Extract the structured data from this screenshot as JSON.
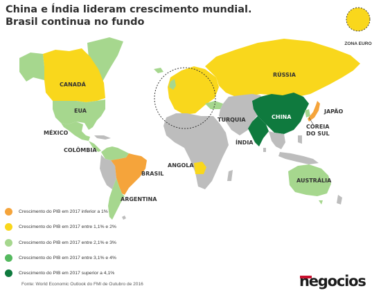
{
  "title": {
    "line1": "China e Índia lideram crescimento mundial.",
    "line2": "Brasil continua no fundo"
  },
  "colors": {
    "below_1": "#f5a43b",
    "from_1_1_to_2": "#f9d71c",
    "from_2_1_to_3": "#a6d78e",
    "from_3_1_to_4": "#55b95f",
    "above_4_1": "#0f7a3e",
    "no_category": "#bdbdbd",
    "brand_accent": "#c8102e"
  },
  "legend": [
    {
      "color": "#f5a43b",
      "label": "Crescimento do PIB em 2017 inferior a 1%"
    },
    {
      "color": "#f9d71c",
      "label": "Crescimento do PIB em 2017 entre 1,1% e 2%"
    },
    {
      "color": "#a6d78e",
      "label": "Crescimento do PIB em 2017 entre 2,1% e 3%"
    },
    {
      "color": "#55b95f",
      "label": "Crescimento do PIB em 2017 entre 3,1% e 4%"
    },
    {
      "color": "#0f7a3e",
      "label": "Crescimento do PIB em 2017 superior a 4,1%"
    }
  ],
  "euro_zone": {
    "label": "ZONA EURO",
    "color": "#f9d71c"
  },
  "countries": {
    "canada": {
      "label": "CANADÁ",
      "color": "#f9d71c"
    },
    "eua": {
      "label": "EUA",
      "color": "#a6d78e"
    },
    "mexico": {
      "label": "MÉXICO",
      "color": "#a6d78e"
    },
    "colombia": {
      "label": "COLÔMBIA",
      "color": "#a6d78e"
    },
    "brasil": {
      "label": "BRASIL",
      "color": "#f5a43b"
    },
    "argentina": {
      "label": "ARGENTINA",
      "color": "#a6d78e"
    },
    "angola": {
      "label": "ANGOLA",
      "color": "#f9d71c"
    },
    "russia": {
      "label": "RÚSSIA",
      "color": "#f9d71c"
    },
    "turquia": {
      "label": "TURQUIA",
      "color": "#a6d78e"
    },
    "india": {
      "label": "ÍNDIA",
      "color": "#0f7a3e"
    },
    "china": {
      "label": "CHINA",
      "color": "#0f7a3e"
    },
    "japao": {
      "label": "JAPÃO",
      "color": "#f5a43b"
    },
    "coreia_line1": "COREIA",
    "coreia_line2": "DO SUL",
    "australia": {
      "label": "AUSTRÁLIA",
      "color": "#a6d78e"
    }
  },
  "source": "Fonte: World Economic Outlook do FMI de Outubro de 2016",
  "brand": "negocios"
}
